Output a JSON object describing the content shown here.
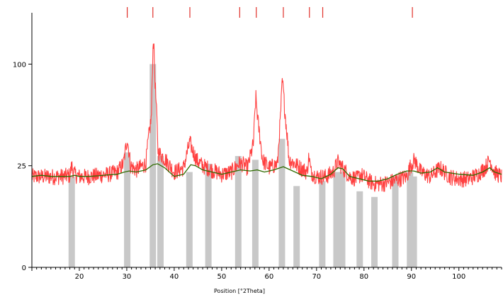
{
  "chart_data": {
    "type": "line",
    "title": "",
    "xlabel": "Position [°2Theta]",
    "ylabel": "",
    "xlim": [
      10,
      109
    ],
    "y_scale": "sqrt",
    "ylim": [
      0,
      150
    ],
    "x_ticks": [
      20,
      30,
      40,
      50,
      60,
      70,
      80,
      90,
      100
    ],
    "y_ticks": [
      0,
      25,
      100
    ],
    "grid": false,
    "legend": "none",
    "colors": {
      "observed": "#ff4040",
      "fit": "#2e6b00",
      "reference_bars": "#c8c8c8",
      "reference_markers": "#e0302a"
    },
    "series": [
      {
        "kind": "observed",
        "x": [
          10,
          12,
          14,
          16,
          18,
          18.4,
          19,
          20,
          22,
          24,
          26,
          28,
          29.3,
          30.1,
          30.8,
          32,
          34,
          35.2,
          35.6,
          36.0,
          36.6,
          37.5,
          38.5,
          40,
          42,
          43.3,
          43.9,
          44.7,
          46,
          48,
          50,
          52,
          53.6,
          54.4,
          55.5,
          56.7,
          57.2,
          57.7,
          58.6,
          60,
          61.8,
          62.4,
          62.8,
          63.3,
          64.2,
          66,
          68,
          68.4,
          68.8,
          70,
          72,
          73.5,
          74.5,
          75.5,
          77,
          78.5,
          79.3,
          80.5,
          82,
          84,
          86,
          87.5,
          89,
          89.8,
          90.6,
          92,
          94,
          96,
          98,
          100,
          102,
          104,
          105.5,
          106.5,
          107.5,
          109
        ],
        "y": [
          20,
          20,
          20,
          20,
          20.5,
          25,
          21,
          20,
          20,
          20.5,
          21,
          22,
          26,
          40,
          25,
          23,
          26,
          55,
          130,
          80,
          32,
          30,
          27,
          22,
          24,
          38,
          33,
          28,
          25,
          23,
          21,
          22,
          26,
          26,
          24,
          37,
          70,
          50,
          28,
          24,
          26,
          55,
          85,
          60,
          28,
          25,
          22,
          30,
          22,
          20,
          20,
          22,
          27,
          24,
          20,
          19,
          21,
          19,
          17,
          17,
          18,
          19,
          20,
          25,
          28,
          22,
          20,
          24,
          20,
          19,
          19,
          21,
          24,
          28,
          22,
          20
        ]
      },
      {
        "kind": "fit",
        "x": [
          10,
          12,
          14,
          16,
          18,
          19,
          20,
          22,
          24,
          26,
          28,
          29.5,
          30.5,
          32,
          34,
          35.5,
          36.5,
          38,
          40,
          42,
          43.5,
          44.5,
          46,
          48,
          50,
          52,
          54,
          56,
          57.5,
          59,
          61,
          63,
          65,
          67,
          69,
          71,
          73,
          74.5,
          75.5,
          77,
          79,
          81,
          83,
          85,
          87,
          89,
          90.5,
          92,
          94,
          95.5,
          97,
          100,
          103,
          105,
          106.5,
          107.5,
          109
        ],
        "y": [
          20,
          20.5,
          20,
          20,
          20,
          20.5,
          20,
          20,
          20.3,
          20.7,
          21,
          22,
          22.5,
          22,
          23,
          25.5,
          26,
          24,
          20,
          21,
          25.5,
          25,
          23,
          22,
          21,
          22,
          23,
          22.5,
          23,
          22,
          23,
          24.5,
          22.5,
          20.5,
          20,
          19,
          21,
          24,
          23.5,
          20,
          19,
          18,
          18,
          19,
          21,
          22.5,
          22.5,
          21.5,
          22,
          24,
          22,
          21,
          20.5,
          22,
          24,
          22,
          21
        ]
      }
    ],
    "reference_peaks": [
      {
        "x": 18.4,
        "height": 20
      },
      {
        "x": 30.1,
        "height": 32
      },
      {
        "x": 35.5,
        "height": 100
      },
      {
        "x": 37.1,
        "height": 30
      },
      {
        "x": 43.2,
        "height": 22
      },
      {
        "x": 47.2,
        "height": 26
      },
      {
        "x": 53.5,
        "height": 30
      },
      {
        "x": 57.1,
        "height": 28
      },
      {
        "x": 62.7,
        "height": 40
      },
      {
        "x": 65.8,
        "height": 16
      },
      {
        "x": 71.2,
        "height": 18
      },
      {
        "x": 74.2,
        "height": 22
      },
      {
        "x": 75.4,
        "height": 22
      },
      {
        "x": 79.1,
        "height": 14
      },
      {
        "x": 82.2,
        "height": 12
      },
      {
        "x": 86.6,
        "height": 20
      },
      {
        "x": 89.7,
        "height": 22
      },
      {
        "x": 90.5,
        "height": 20
      }
    ],
    "top_markers": [
      30.1,
      35.5,
      43.3,
      53.8,
      57.3,
      63.0,
      68.5,
      71.3,
      90.2
    ]
  }
}
